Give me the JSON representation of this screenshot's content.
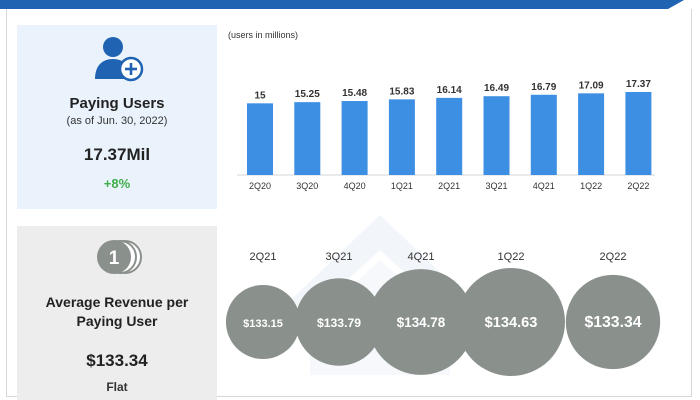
{
  "users_panel": {
    "title": "Paying Users",
    "subtitle": "(as of Jun. 30, 2022)",
    "value": "17.37Mil",
    "growth": "+8%",
    "icon": "add-user-icon"
  },
  "arpu_panel": {
    "title": "Average Revenue per Paying User",
    "value": "$133.34",
    "change": "Flat",
    "icon": "coin-stack-icon"
  },
  "colors": {
    "bar": "#3d8fe3",
    "bubble": "#8a918c",
    "growth": "#3fae49",
    "band": "#1f63b2"
  },
  "chart_data": [
    {
      "type": "bar",
      "unit_note": "(users in millions)",
      "categories": [
        "2Q20",
        "3Q20",
        "4Q20",
        "1Q21",
        "2Q21",
        "3Q21",
        "4Q21",
        "1Q22",
        "2Q22"
      ],
      "values": [
        15,
        15.25,
        15.48,
        15.83,
        16.14,
        16.49,
        16.79,
        17.09,
        17.37
      ],
      "value_labels": [
        "15",
        "15.25",
        "15.48",
        "15.83",
        "16.14",
        "16.49",
        "16.79",
        "17.09",
        "17.37"
      ],
      "ylim": [
        0,
        17.37
      ],
      "grid": false,
      "legend": false
    },
    {
      "type": "bubble",
      "categories": [
        "2Q21",
        "3Q21",
        "4Q21",
        "1Q22",
        "2Q22"
      ],
      "values": [
        133.15,
        133.79,
        134.78,
        134.63,
        133.34
      ],
      "value_labels": [
        "$133.15",
        "$133.79",
        "$134.78",
        "$134.63",
        "$133.34"
      ]
    }
  ]
}
